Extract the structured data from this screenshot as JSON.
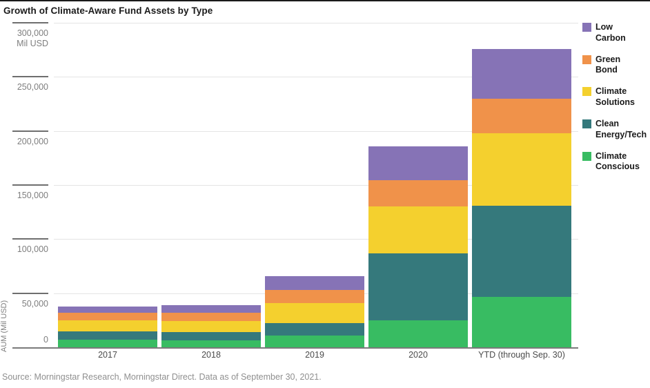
{
  "title": "Growth of Climate-Aware Fund Assets by Type",
  "source": "Source: Morningstar Research, Morningstar Direct. Data as of September 30, 2021.",
  "y_axis": {
    "axis_title": "AUM (Mil USD)",
    "unit_label": "Mil USD",
    "ticks": [
      "300,000",
      "250,000",
      "200,000",
      "150,000",
      "100,000",
      "50,000",
      "0"
    ],
    "tick_values": [
      300000,
      250000,
      200000,
      150000,
      100000,
      50000,
      0
    ]
  },
  "chart_data": {
    "type": "bar",
    "stacked": true,
    "title": "Growth of Climate-Aware Fund Assets by Type",
    "xlabel": "",
    "ylabel": "AUM (Mil USD)",
    "unit": "Mil USD",
    "ylim": [
      0,
      300000
    ],
    "grid": true,
    "legend_position": "right",
    "categories": [
      "2017",
      "2018",
      "2019",
      "2020",
      "YTD (through Sep. 30)"
    ],
    "series": [
      {
        "name": "Climate Conscious",
        "color": "#38bc62",
        "values": [
          7000,
          6400,
          10600,
          24900,
          46300
        ]
      },
      {
        "name": "Clean Energy/Tech",
        "color": "#35797c",
        "values": [
          7900,
          7400,
          11700,
          61900,
          84500
        ]
      },
      {
        "name": "Climate Solutions",
        "color": "#f4d02e",
        "values": [
          10000,
          10700,
          18500,
          43400,
          67000
        ]
      },
      {
        "name": "Green Bond",
        "color": "#f0924a",
        "values": [
          7000,
          7400,
          12300,
          24000,
          31900
        ]
      },
      {
        "name": "Low Carbon",
        "color": "#8673b6",
        "values": [
          5700,
          7000,
          12800,
          31300,
          46300
        ]
      }
    ],
    "totals": [
      37600,
      38900,
      65900,
      185500,
      276000
    ],
    "legend": [
      {
        "name": "Low Carbon",
        "lines": [
          "Low",
          "Carbon"
        ],
        "color": "#8673b6"
      },
      {
        "name": "Green Bond",
        "lines": [
          "Green",
          "Bond"
        ],
        "color": "#f0924a"
      },
      {
        "name": "Climate Solutions",
        "lines": [
          "Climate",
          "Solutions"
        ],
        "color": "#f4d02e"
      },
      {
        "name": "Clean Energy/Tech",
        "lines": [
          "Clean",
          "Energy/Tech"
        ],
        "color": "#35797c"
      },
      {
        "name": "Climate Conscious",
        "lines": [
          "Climate",
          "Conscious"
        ],
        "color": "#38bc62"
      }
    ]
  }
}
